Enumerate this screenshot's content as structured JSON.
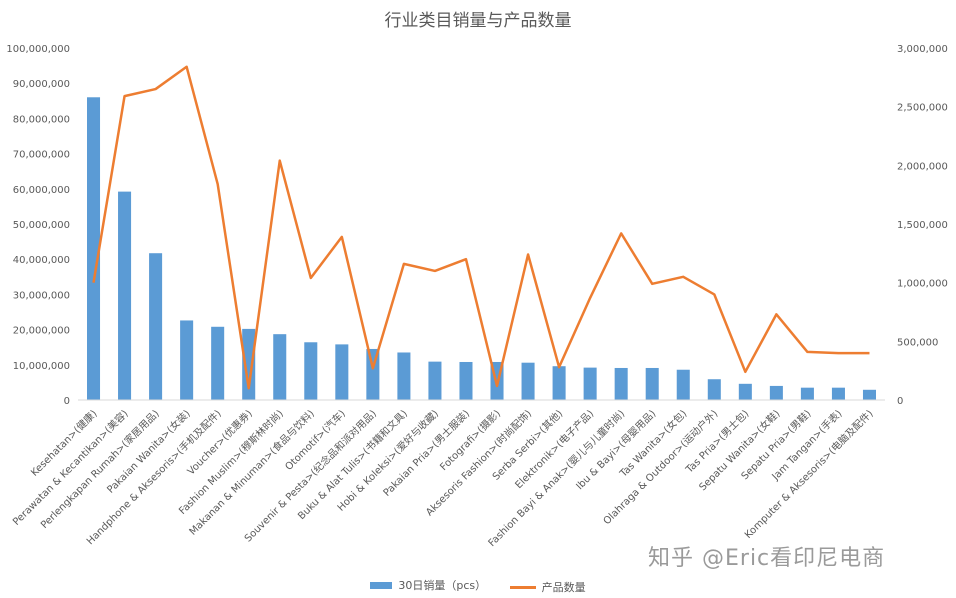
{
  "chart_data": {
    "type": "bar+line",
    "title": "行业类目销量与产品数量",
    "categories": [
      "Kesehatan>(健康)",
      "Perawatan & Kecantikan>(美容)",
      "Perlengkapan Rumah>(家居用品)",
      "Pakaian Wanita>(女装)",
      "Handphone & Aksesoris>(手机及配件)",
      "Voucher>(优惠券)",
      "Fashion Muslim>(穆斯林时尚)",
      "Makanan & Minuman>(食品与饮料)",
      "Otomotif>(汽车)",
      "Souvenir & Pesta>(纪念品和派对用品)",
      "Buku & Alat Tulis>(书籍和文具)",
      "Hobi & Koleksi>(爱好与收藏)",
      "Pakaian Pria>(男士服装)",
      "Fotografi>(摄影)",
      "Aksesoris Fashion>(时尚配饰)",
      "Serba Serbi>(其他)",
      "Elektronik>(电子产品)",
      "Fashion Bayi & Anak>(婴儿与儿童时尚)",
      "Ibu & Bayi>(母婴用品)",
      "Tas Wanita>(女包)",
      "Olahraga & Outdoor>(运动户外)",
      "Tas Pria>(男士包)",
      "Sepatu Wanita>(女鞋)",
      "Sepatu Pria>(男鞋)",
      "Jam Tangan>(手表)",
      "Komputer & Aksesoris>(电脑及配件)"
    ],
    "series": [
      {
        "name": "30日销量（pcs）",
        "type": "bar",
        "axis": "left",
        "color": "#5B9BD5",
        "values": [
          86000000,
          59200000,
          41700000,
          22600000,
          20800000,
          20200000,
          18700000,
          16400000,
          15800000,
          14500000,
          13500000,
          10900000,
          10800000,
          10800000,
          10600000,
          9600000,
          9200000,
          9100000,
          9100000,
          8600000,
          5900000,
          4600000,
          4000000,
          3500000,
          3500000,
          2900000
        ]
      },
      {
        "name": "产品数量",
        "type": "line",
        "axis": "right",
        "color": "#ED7D31",
        "values": [
          1000000,
          2590000,
          2650000,
          2840000,
          1840000,
          100000,
          2040000,
          1040000,
          1390000,
          270000,
          1160000,
          1100000,
          1200000,
          120000,
          1240000,
          280000,
          870000,
          1420000,
          990000,
          1050000,
          900000,
          240000,
          730000,
          410000,
          400000,
          400000
        ]
      }
    ],
    "ylim_left": [
      0,
      100000000
    ],
    "yticks_left": [
      "0",
      "10,000,000",
      "20,000,000",
      "30,000,000",
      "40,000,000",
      "50,000,000",
      "60,000,000",
      "70,000,000",
      "80,000,000",
      "90,000,000",
      "100,000,000"
    ],
    "ylim_right": [
      0,
      3000000
    ],
    "yticks_right": [
      "0",
      "500,000",
      "1,000,000",
      "1,500,000",
      "2,000,000",
      "2,500,000",
      "3,000,000"
    ],
    "legend_position": "bottom",
    "grid": false
  },
  "watermark": "知乎 @Eric看印尼电商"
}
